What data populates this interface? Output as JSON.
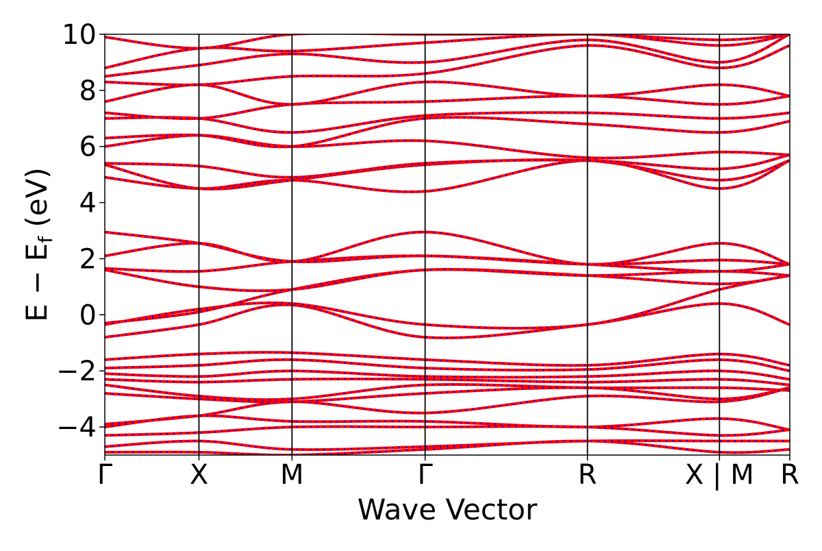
{
  "chart_data": {
    "type": "line",
    "title": "",
    "xlabel": "Wave Vector",
    "ylabel_main": "E − E",
    "ylabel_sub": "f",
    "ylabel_unit": " (eV)",
    "ylim": [
      -5,
      10
    ],
    "yticks": [
      -4,
      -2,
      0,
      2,
      4,
      6,
      8,
      10
    ],
    "ytick_labels": [
      "−4",
      "−2",
      "0",
      "2",
      "4",
      "6",
      "8",
      "10"
    ],
    "xlim": [
      0,
      6.33
    ],
    "kpoints": [
      {
        "label": "Γ",
        "x": 0.0
      },
      {
        "label": "X",
        "x": 0.87
      },
      {
        "label": "M",
        "x": 1.73
      },
      {
        "label": "Γ",
        "x": 2.96
      },
      {
        "label": "R",
        "x": 4.46
      },
      {
        "label": "X | M",
        "x": 5.68
      },
      {
        "label": "R",
        "x": 6.33
      }
    ],
    "series_colors": {
      "solid": "#ff0000",
      "dashed": "#0000ff"
    },
    "grid": false,
    "series": [
      {
        "x": [
          0.0,
          0.87,
          1.73,
          2.96,
          4.46,
          5.68,
          6.33
        ],
        "y": [
          -0.8,
          -0.35,
          0.35,
          -0.8,
          -0.35,
          0.4,
          -0.35
        ]
      },
      {
        "x": [
          0.0,
          0.87,
          1.73,
          2.96,
          4.46,
          5.68,
          6.33
        ],
        "y": [
          -0.35,
          0.2,
          0.4,
          -0.35,
          -0.35,
          0.9,
          1.4
        ]
      },
      {
        "x": [
          0.0,
          0.87,
          1.73,
          2.96,
          4.46,
          5.68,
          6.33
        ],
        "y": [
          -0.3,
          0.1,
          0.9,
          1.6,
          1.4,
          1.1,
          1.4
        ]
      },
      {
        "x": [
          0.0,
          0.87,
          1.73,
          2.96,
          4.46,
          5.68,
          6.33
        ],
        "y": [
          1.6,
          1.0,
          0.9,
          1.6,
          1.4,
          1.55,
          1.4
        ]
      },
      {
        "x": [
          0.0,
          0.87,
          1.73,
          2.96,
          4.46,
          5.68,
          6.33
        ],
        "y": [
          1.65,
          1.55,
          1.9,
          2.1,
          1.8,
          1.55,
          1.8
        ]
      },
      {
        "x": [
          0.0,
          0.87,
          1.73,
          2.96,
          4.46,
          5.68,
          6.33
        ],
        "y": [
          2.1,
          2.55,
          1.9,
          2.95,
          1.8,
          2.55,
          1.8
        ]
      },
      {
        "x": [
          0.0,
          0.87,
          1.73,
          2.96,
          4.46,
          5.68,
          6.33
        ],
        "y": [
          2.95,
          2.55,
          1.9,
          2.1,
          1.8,
          1.95,
          1.8
        ]
      },
      {
        "x": [
          0.0,
          0.87,
          1.73,
          2.96,
          4.46,
          5.68,
          6.33
        ],
        "y": [
          -1.6,
          -1.4,
          -1.35,
          -1.6,
          -1.8,
          -1.4,
          -1.8
        ]
      },
      {
        "x": [
          0.0,
          0.87,
          1.73,
          2.96,
          4.46,
          5.68,
          6.33
        ],
        "y": [
          -1.9,
          -1.8,
          -1.6,
          -1.9,
          -1.95,
          -1.6,
          -2.0
        ]
      },
      {
        "x": [
          0.0,
          0.87,
          1.73,
          2.96,
          4.46,
          5.68,
          6.33
        ],
        "y": [
          -2.1,
          -2.2,
          -2.0,
          -2.2,
          -2.2,
          -2.0,
          -2.3
        ]
      },
      {
        "x": [
          0.0,
          0.87,
          1.73,
          2.96,
          4.46,
          5.68,
          6.33
        ],
        "y": [
          -2.3,
          -2.4,
          -2.3,
          -2.3,
          -2.4,
          -2.3,
          -2.5
        ]
      },
      {
        "x": [
          0.0,
          0.87,
          1.73,
          2.96,
          4.46,
          5.68,
          6.33
        ],
        "y": [
          -2.5,
          -2.9,
          -3.0,
          -2.5,
          -2.6,
          -2.6,
          -2.7
        ]
      },
      {
        "x": [
          0.0,
          0.87,
          1.73,
          2.96,
          4.46,
          5.68,
          6.33
        ],
        "y": [
          -2.8,
          -3.0,
          -3.1,
          -2.8,
          -2.6,
          -3.0,
          -2.6
        ]
      },
      {
        "x": [
          0.0,
          0.87,
          1.73,
          2.96,
          4.46,
          5.68,
          6.33
        ],
        "y": [
          -3.9,
          -3.6,
          -3.1,
          -3.5,
          -2.9,
          -3.1,
          -2.6
        ]
      },
      {
        "x": [
          0.0,
          0.87,
          1.73,
          2.96,
          4.46,
          5.68,
          6.33
        ],
        "y": [
          -4.0,
          -3.6,
          -3.8,
          -3.8,
          -4.0,
          -3.7,
          -4.1
        ]
      },
      {
        "x": [
          0.0,
          0.87,
          1.73,
          2.96,
          4.46,
          5.68,
          6.33
        ],
        "y": [
          -4.3,
          -4.2,
          -4.0,
          -4.0,
          -4.0,
          -4.3,
          -4.1
        ]
      },
      {
        "x": [
          0.0,
          0.87,
          1.73,
          2.96,
          4.46,
          5.68,
          6.33
        ],
        "y": [
          -4.7,
          -4.5,
          -4.8,
          -4.7,
          -4.5,
          -4.5,
          -4.5
        ]
      },
      {
        "x": [
          0.0,
          0.87,
          1.73,
          2.96,
          4.46,
          5.68,
          6.33
        ],
        "y": [
          -4.9,
          -4.9,
          -5.0,
          -4.8,
          -4.5,
          -4.9,
          -4.8
        ]
      },
      {
        "x": [
          0.0,
          0.87,
          1.73,
          2.96,
          4.46,
          5.68,
          6.33
        ],
        "y": [
          4.9,
          4.5,
          4.8,
          4.4,
          5.5,
          4.5,
          5.5
        ]
      },
      {
        "x": [
          0.0,
          0.87,
          1.73,
          2.96,
          4.46,
          5.68,
          6.33
        ],
        "y": [
          5.35,
          4.5,
          4.8,
          5.35,
          5.5,
          4.8,
          5.5
        ]
      },
      {
        "x": [
          0.0,
          0.87,
          1.73,
          2.96,
          4.46,
          5.68,
          6.33
        ],
        "y": [
          5.4,
          5.3,
          4.9,
          5.4,
          5.5,
          5.2,
          5.7
        ]
      },
      {
        "x": [
          0.0,
          0.87,
          1.73,
          2.96,
          4.46,
          5.68,
          6.33
        ],
        "y": [
          6.0,
          6.4,
          6.0,
          6.2,
          5.6,
          5.8,
          5.7
        ]
      },
      {
        "x": [
          0.0,
          0.87,
          1.73,
          2.96,
          4.46,
          5.68,
          6.33
        ],
        "y": [
          6.3,
          6.4,
          6.0,
          7.0,
          6.8,
          6.5,
          6.9
        ]
      },
      {
        "x": [
          0.0,
          0.87,
          1.73,
          2.96,
          4.46,
          5.68,
          6.33
        ],
        "y": [
          7.0,
          7.0,
          6.5,
          7.1,
          7.2,
          7.0,
          7.2
        ]
      },
      {
        "x": [
          0.0,
          0.87,
          1.73,
          2.96,
          4.46,
          5.68,
          6.33
        ],
        "y": [
          7.2,
          7.0,
          7.5,
          7.6,
          7.8,
          7.5,
          7.8
        ]
      },
      {
        "x": [
          0.0,
          0.87,
          1.73,
          2.96,
          4.46,
          5.68,
          6.33
        ],
        "y": [
          7.6,
          8.2,
          7.5,
          8.3,
          7.8,
          8.2,
          7.8
        ]
      },
      {
        "x": [
          0.0,
          0.87,
          1.73,
          2.96,
          4.46,
          5.68,
          6.33
        ],
        "y": [
          8.3,
          8.2,
          8.5,
          8.6,
          9.6,
          8.8,
          9.6
        ]
      },
      {
        "x": [
          0.0,
          0.87,
          1.73,
          2.96,
          4.46,
          5.68,
          6.33
        ],
        "y": [
          8.5,
          8.9,
          9.3,
          9.0,
          9.8,
          9.0,
          10.0
        ]
      },
      {
        "x": [
          0.0,
          0.87,
          1.73,
          2.96,
          4.46,
          5.68,
          6.33
        ],
        "y": [
          8.8,
          9.5,
          9.4,
          9.7,
          10.0,
          9.6,
          10.0
        ]
      },
      {
        "x": [
          0.0,
          0.87,
          1.73,
          2.96,
          4.46,
          5.68,
          6.33
        ],
        "y": [
          9.9,
          9.5,
          10.0,
          10.0,
          10.0,
          9.8,
          10.0
        ]
      }
    ]
  }
}
